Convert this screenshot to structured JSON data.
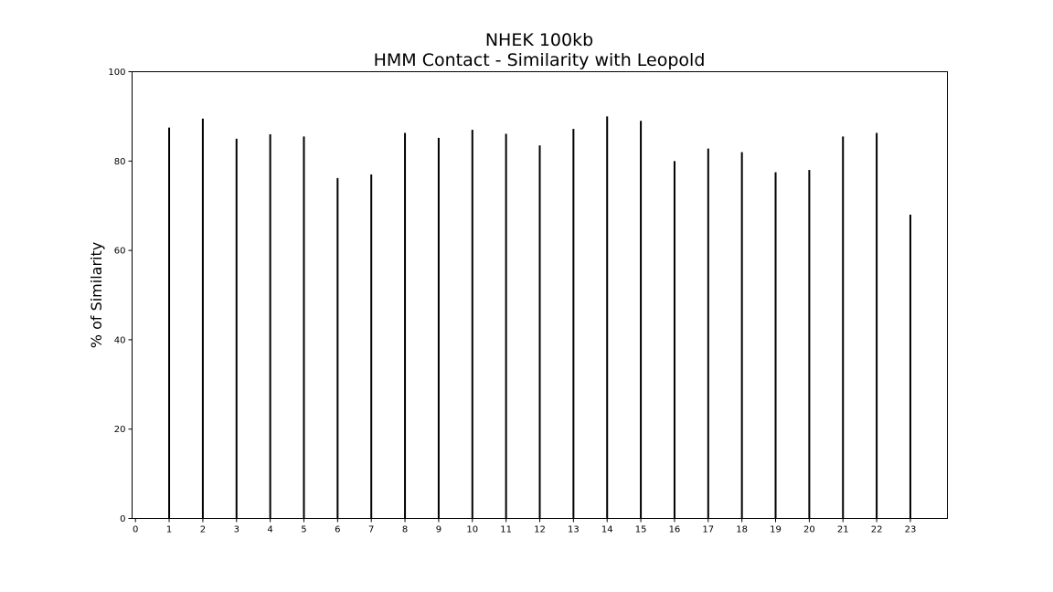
{
  "chart_data": {
    "type": "bar",
    "title": "NHEK 100kb",
    "subtitle": "HMM Contact - Similarity with Leopold",
    "xlabel": "",
    "ylabel": "% of Similarity",
    "x_ticks": [
      "0",
      "1",
      "2",
      "3",
      "4",
      "5",
      "6",
      "7",
      "8",
      "9",
      "10",
      "11",
      "12",
      "13",
      "14",
      "15",
      "16",
      "17",
      "18",
      "19",
      "20",
      "21",
      "22",
      "23"
    ],
    "y_ticks": [
      "0",
      "20",
      "40",
      "60",
      "80",
      "100"
    ],
    "ylim": [
      0,
      100
    ],
    "xlim": [
      -0.1,
      24.1
    ],
    "categories": [
      "1",
      "2",
      "3",
      "4",
      "5",
      "6",
      "7",
      "8",
      "9",
      "10",
      "11",
      "12",
      "13",
      "14",
      "15",
      "16",
      "17",
      "18",
      "19",
      "20",
      "21",
      "22",
      "23"
    ],
    "values": [
      87.5,
      89.5,
      85.0,
      86.0,
      85.5,
      76.2,
      77.0,
      86.3,
      85.2,
      87.0,
      86.1,
      83.5,
      87.2,
      90.0,
      89.0,
      80.0,
      82.8,
      82.0,
      77.5,
      78.0,
      85.5,
      86.3,
      68.0
    ],
    "bar_color": "#000000",
    "grid": false
  }
}
